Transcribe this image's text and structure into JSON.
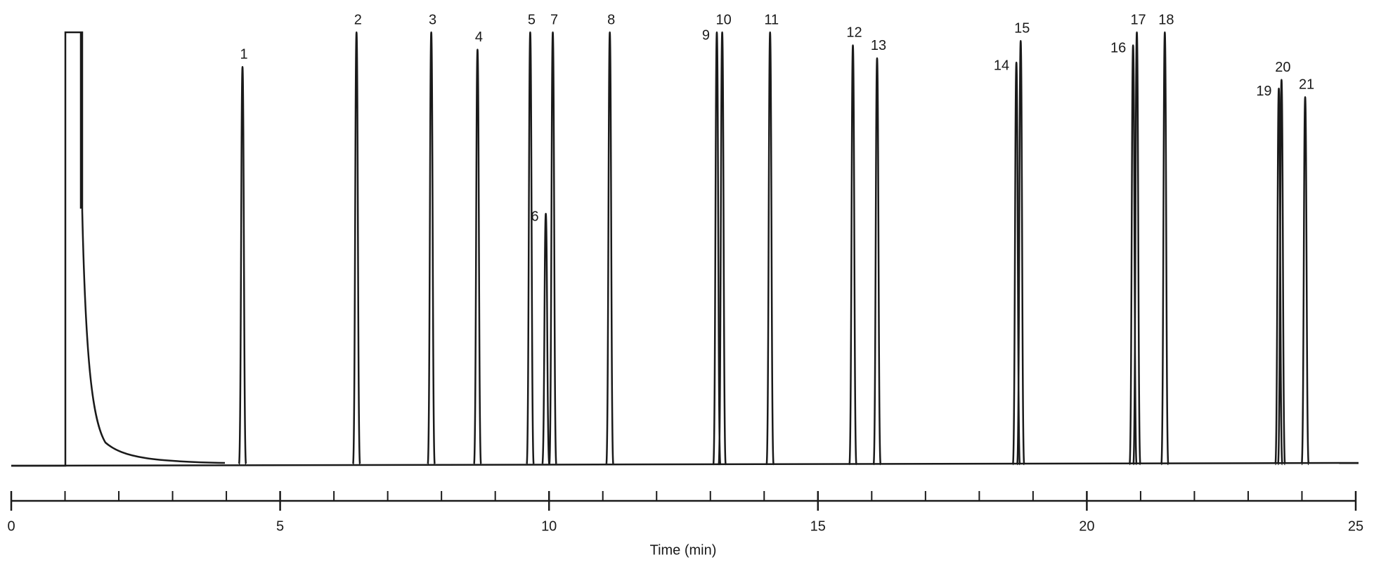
{
  "chart_data": {
    "type": "chromatogram",
    "x_label": "Time (min)",
    "labels": [
      "1",
      "2",
      "3",
      "4",
      "5",
      "6",
      "7",
      "8",
      "9",
      "10",
      "11",
      "12",
      "13",
      "14",
      "15",
      "16",
      "17",
      "18",
      "19",
      "20",
      "21"
    ],
    "x": [
      4.3,
      6.42,
      7.81,
      8.67,
      9.65,
      9.94,
      10.07,
      11.13,
      13.12,
      13.22,
      14.11,
      15.65,
      16.1,
      18.69,
      18.77,
      20.86,
      20.93,
      21.45,
      23.57,
      23.62,
      24.06
    ],
    "values": [
      92,
      100,
      100,
      96,
      100,
      58,
      100,
      100,
      100,
      100,
      100,
      97,
      94,
      93,
      98,
      97,
      100,
      100,
      87,
      89,
      85
    ],
    "color": "#1a1a1a",
    "xlim": [
      0,
      25
    ],
    "xticks": [
      0,
      5,
      10,
      15,
      20,
      25
    ],
    "ylim": [
      0,
      100
    ]
  }
}
